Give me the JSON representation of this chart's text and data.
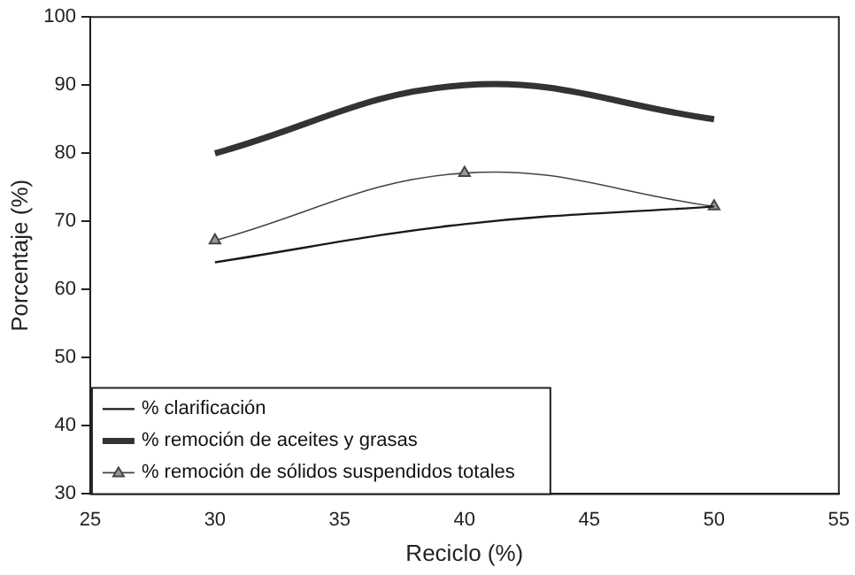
{
  "chart_data": {
    "type": "line",
    "xlabel": "Reciclo (%)",
    "ylabel": "Porcentaje (%)",
    "x": [
      30,
      40,
      50
    ],
    "series": [
      {
        "name": "% clarificación",
        "color": "#1a1a1a",
        "values": [
          64,
          69.6,
          72.2
        ],
        "marker": "none"
      },
      {
        "name": "% remoción de aceites y grasas",
        "color": "#333333",
        "values": [
          80,
          90,
          85
        ],
        "marker": "none"
      },
      {
        "name": "% remoción de sólidos suspendidos totales",
        "color": "#444444",
        "values": [
          67.2,
          77.1,
          72.2
        ],
        "marker": "triangle"
      }
    ],
    "xlim": [
      25,
      55
    ],
    "xticks": [
      25,
      30,
      35,
      40,
      45,
      50,
      55
    ],
    "ylim": [
      30,
      100
    ],
    "yticks": [
      30,
      40,
      50,
      60,
      70,
      80,
      90,
      100
    ],
    "grid": false,
    "legend": "bottom left",
    "line_style": "solid"
  }
}
